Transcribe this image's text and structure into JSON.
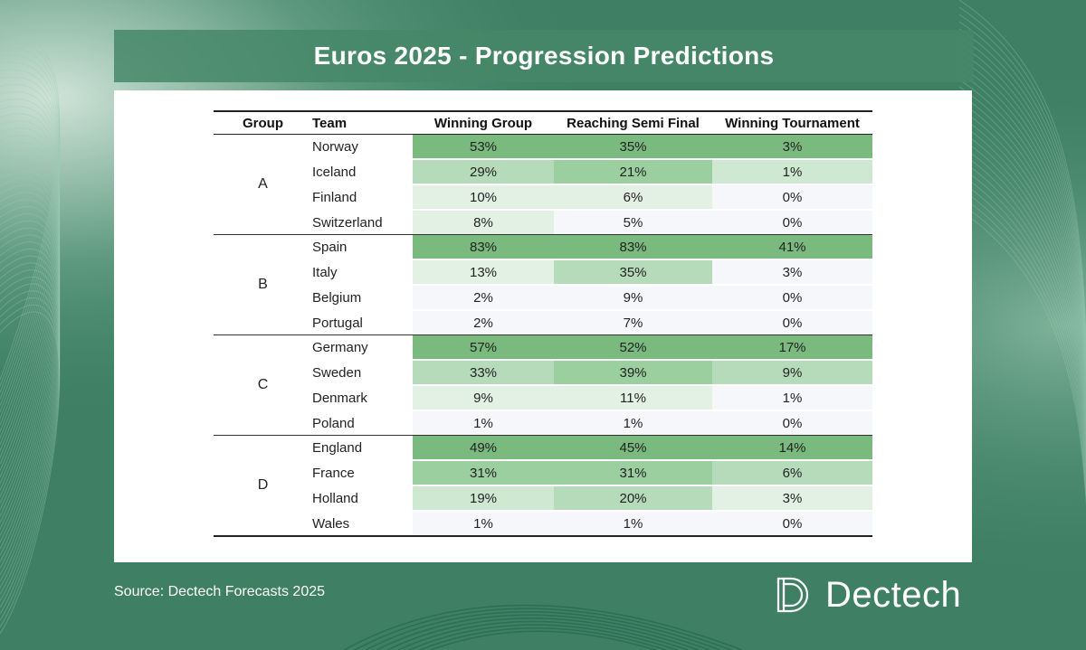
{
  "title": "Euros 2025 - Progression Predictions",
  "source": "Source: Dectech Forecasts 2025",
  "brand": "Dectech",
  "colors": {
    "background": "#3f8064",
    "cell_scale": [
      "#f5f7fa",
      "#e3f1e4",
      "#cfe8d2",
      "#b5dbba",
      "#9bcf9f",
      "#7aba7e"
    ]
  },
  "icons": [
    "dectech-logo-icon"
  ],
  "chart_data": {
    "type": "table",
    "title": "Euros 2025 - Progression Predictions",
    "columns": [
      "Group",
      "Team",
      "Winning Group",
      "Reaching Semi Final",
      "Winning Tournament"
    ],
    "groups": [
      {
        "group": "A",
        "rows": [
          {
            "team": "Norway",
            "winning_group": "53%",
            "semi_final": "35%",
            "winning_tournament": "3%"
          },
          {
            "team": "Iceland",
            "winning_group": "29%",
            "semi_final": "21%",
            "winning_tournament": "1%"
          },
          {
            "team": "Finland",
            "winning_group": "10%",
            "semi_final": "6%",
            "winning_tournament": "0%"
          },
          {
            "team": "Switzerland",
            "winning_group": "8%",
            "semi_final": "5%",
            "winning_tournament": "0%"
          }
        ]
      },
      {
        "group": "B",
        "rows": [
          {
            "team": "Spain",
            "winning_group": "83%",
            "semi_final": "83%",
            "winning_tournament": "41%"
          },
          {
            "team": "Italy",
            "winning_group": "13%",
            "semi_final": "35%",
            "winning_tournament": "3%"
          },
          {
            "team": "Belgium",
            "winning_group": "2%",
            "semi_final": "9%",
            "winning_tournament": "0%"
          },
          {
            "team": "Portugal",
            "winning_group": "2%",
            "semi_final": "7%",
            "winning_tournament": "0%"
          }
        ]
      },
      {
        "group": "C",
        "rows": [
          {
            "team": "Germany",
            "winning_group": "57%",
            "semi_final": "52%",
            "winning_tournament": "17%"
          },
          {
            "team": "Sweden",
            "winning_group": "33%",
            "semi_final": "39%",
            "winning_tournament": "9%"
          },
          {
            "team": "Denmark",
            "winning_group": "9%",
            "semi_final": "11%",
            "winning_tournament": "1%"
          },
          {
            "team": "Poland",
            "winning_group": "1%",
            "semi_final": "1%",
            "winning_tournament": "0%"
          }
        ]
      },
      {
        "group": "D",
        "rows": [
          {
            "team": "England",
            "winning_group": "49%",
            "semi_final": "45%",
            "winning_tournament": "14%"
          },
          {
            "team": "France",
            "winning_group": "31%",
            "semi_final": "31%",
            "winning_tournament": "6%"
          },
          {
            "team": "Holland",
            "winning_group": "19%",
            "semi_final": "20%",
            "winning_tournament": "3%"
          },
          {
            "team": "Wales",
            "winning_group": "1%",
            "semi_final": "1%",
            "winning_tournament": "0%"
          }
        ]
      }
    ]
  }
}
